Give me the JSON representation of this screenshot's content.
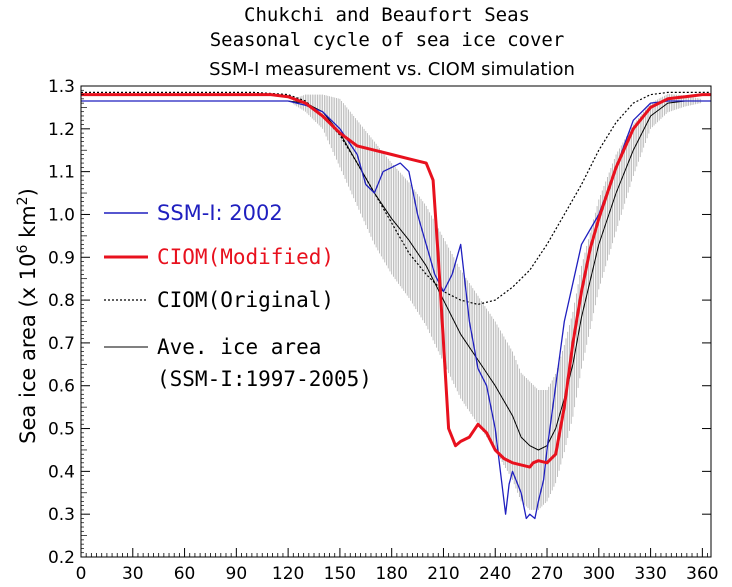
{
  "chart_data": {
    "type": "line",
    "title_lines": [
      "Chukchi and Beaufort Seas",
      "Seasonal cycle of sea ice cover",
      "SSM-I measurement vs. CIOM simulation"
    ],
    "ylabel": {
      "prefix": "Sea ice area (x 10",
      "sup": "6",
      "mid": " km",
      "sup2": "2",
      "suffix": ")"
    },
    "xlabel": "",
    "xlim": [
      0,
      365
    ],
    "ylim": [
      0.2,
      1.3
    ],
    "xticks": [
      0,
      30,
      60,
      90,
      120,
      150,
      180,
      210,
      240,
      270,
      300,
      330,
      360
    ],
    "yticks": [
      "0.2",
      "0.3",
      "0.4",
      "0.5",
      "0.6",
      "0.7",
      "0.8",
      "0.9",
      "1.0",
      "1.1",
      "1.2",
      "1.3"
    ],
    "legend_position": "left",
    "legend": [
      {
        "label": "SSM-I: 2002",
        "color": "#1f1fbf",
        "style": "solid"
      },
      {
        "label": "CIOM(Modified)",
        "color": "#e8111e",
        "style": "solid"
      },
      {
        "label": "CIOM(Original)",
        "color": "#000000",
        "style": "dotted"
      },
      {
        "label": "Ave. ice area",
        "label2": "(SSM-I:1997-2005)",
        "color": "#000000",
        "style": "solid"
      }
    ],
    "series": [
      {
        "name": "CIOM(Original)",
        "color": "#000000",
        "style": "dotted",
        "x": [
          0,
          100,
          120,
          130,
          140,
          150,
          160,
          170,
          180,
          190,
          200,
          210,
          220,
          230,
          240,
          250,
          260,
          270,
          280,
          290,
          300,
          310,
          320,
          330,
          340,
          350,
          365
        ],
        "y": [
          1.285,
          1.285,
          1.28,
          1.265,
          1.23,
          1.185,
          1.12,
          1.05,
          0.98,
          0.91,
          0.86,
          0.82,
          0.8,
          0.79,
          0.8,
          0.83,
          0.87,
          0.93,
          1.0,
          1.07,
          1.15,
          1.215,
          1.26,
          1.28,
          1.285,
          1.285,
          1.285
        ]
      },
      {
        "name": "CIOM(Modified)",
        "color": "#e8111e",
        "style": "solid",
        "x": [
          0,
          90,
          110,
          120,
          130,
          140,
          150,
          160,
          170,
          180,
          190,
          200,
          204,
          207,
          210,
          213,
          217,
          220,
          225,
          230,
          235,
          240,
          245,
          250,
          255,
          260,
          262,
          265,
          270,
          275,
          280,
          285,
          290,
          295,
          300,
          305,
          310,
          320,
          330,
          340,
          350,
          360,
          365
        ],
        "y": [
          1.28,
          1.28,
          1.28,
          1.275,
          1.26,
          1.23,
          1.19,
          1.16,
          1.15,
          1.14,
          1.13,
          1.12,
          1.08,
          0.9,
          0.7,
          0.5,
          0.46,
          0.47,
          0.48,
          0.51,
          0.49,
          0.45,
          0.43,
          0.42,
          0.415,
          0.41,
          0.42,
          0.425,
          0.42,
          0.44,
          0.55,
          0.7,
          0.82,
          0.92,
          0.99,
          1.05,
          1.11,
          1.2,
          1.25,
          1.27,
          1.275,
          1.28,
          1.28
        ]
      },
      {
        "name": "SSM-I: 2002",
        "color": "#1f1fbf",
        "style": "solid",
        "x": [
          0,
          40,
          80,
          120,
          130,
          140,
          150,
          160,
          165,
          170,
          175,
          180,
          185,
          190,
          195,
          200,
          205,
          210,
          215,
          220,
          225,
          230,
          235,
          240,
          243,
          246,
          248,
          250,
          255,
          258,
          260,
          263,
          265,
          268,
          270,
          275,
          280,
          290,
          300,
          310,
          320,
          330,
          340,
          350,
          365
        ],
        "y": [
          1.265,
          1.265,
          1.265,
          1.265,
          1.255,
          1.24,
          1.2,
          1.14,
          1.07,
          1.05,
          1.1,
          1.11,
          1.12,
          1.1,
          1.0,
          0.93,
          0.86,
          0.82,
          0.86,
          0.93,
          0.75,
          0.64,
          0.6,
          0.5,
          0.4,
          0.3,
          0.37,
          0.4,
          0.35,
          0.29,
          0.3,
          0.29,
          0.33,
          0.38,
          0.45,
          0.6,
          0.75,
          0.93,
          1.0,
          1.11,
          1.22,
          1.26,
          1.265,
          1.265,
          1.265
        ]
      },
      {
        "name": "Ave. ice area (SSM-I:1997-2005)",
        "color": "#000000",
        "style": "solid",
        "x": [
          0,
          60,
          110,
          120,
          130,
          140,
          150,
          160,
          170,
          180,
          190,
          200,
          210,
          220,
          230,
          240,
          250,
          255,
          260,
          265,
          270,
          275,
          280,
          285,
          290,
          300,
          310,
          320,
          330,
          340,
          350,
          365
        ],
        "y": [
          1.265,
          1.265,
          1.265,
          1.265,
          1.26,
          1.24,
          1.19,
          1.12,
          1.05,
          0.99,
          0.94,
          0.88,
          0.8,
          0.72,
          0.66,
          0.6,
          0.53,
          0.48,
          0.46,
          0.45,
          0.46,
          0.5,
          0.57,
          0.65,
          0.76,
          0.93,
          1.05,
          1.15,
          1.23,
          1.26,
          1.265,
          1.265
        ]
      }
    ],
    "error_bars": {
      "center": "Ave. ice area (SSM-I:1997-2005)",
      "color": "#b0b0b0",
      "halfwidth_x": [
        0,
        120,
        140,
        150,
        170,
        180,
        200,
        220,
        240,
        260,
        270,
        290,
        310,
        330,
        365
      ],
      "halfwidth_y": [
        0.0,
        0.0,
        0.04,
        0.08,
        0.12,
        0.13,
        0.14,
        0.15,
        0.15,
        0.15,
        0.13,
        0.12,
        0.09,
        0.03,
        0.0
      ]
    }
  }
}
